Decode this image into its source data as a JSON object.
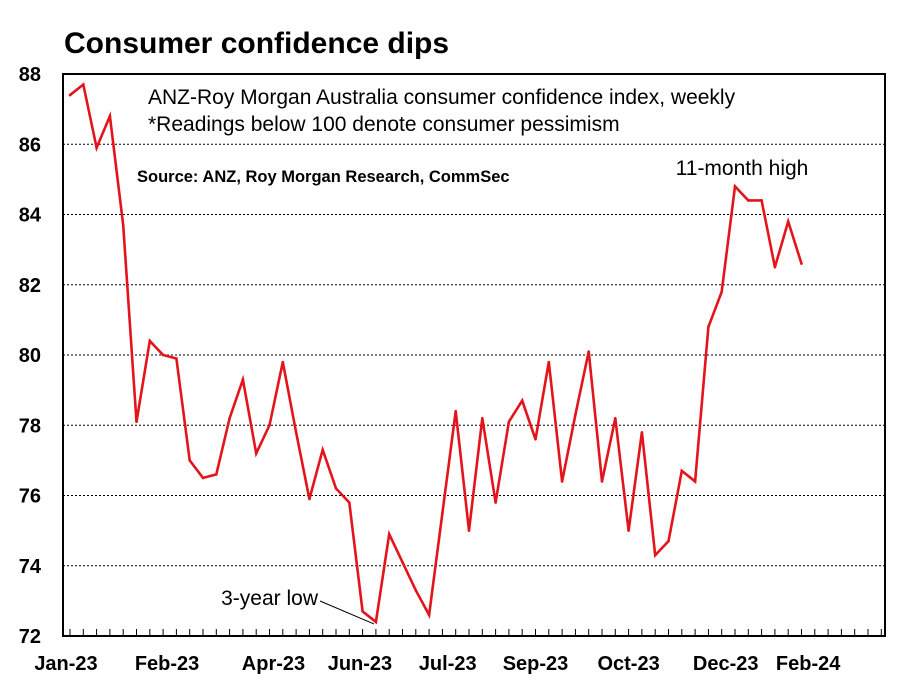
{
  "chart_data": {
    "type": "line",
    "title": "Consumer confidence dips",
    "subtitle_lines": [
      "ANZ-Roy Morgan Australia consumer confidence index, weekly",
      "*Readings below 100 denote consumer pessimism"
    ],
    "source": "Source: ANZ, Roy Morgan Research, CommSec",
    "xlabel": "",
    "ylabel": "",
    "ylim": [
      72,
      88
    ],
    "y_ticks": [
      72,
      74,
      76,
      78,
      80,
      82,
      84,
      86,
      88
    ],
    "x_tick_labels": [
      "Jan-23",
      "Feb-23",
      "Apr-23",
      "Jun-23",
      "Jul-23",
      "Sep-23",
      "Oct-23",
      "Dec-23",
      "Feb-24"
    ],
    "grid": "horizontal dotted",
    "series": [
      {
        "color": "#e3141b",
        "values": [
          87.4,
          87.7,
          85.9,
          86.8,
          83.7,
          78.1,
          80.4,
          80.0,
          79.9,
          77.0,
          76.5,
          76.6,
          78.2,
          79.3,
          77.2,
          78.0,
          79.8,
          77.8,
          75.9,
          77.3,
          76.2,
          75.8,
          72.7,
          72.4,
          74.9,
          74.1,
          73.3,
          72.6,
          75.5,
          78.4,
          75.0,
          78.2,
          75.8,
          78.1,
          78.7,
          77.6,
          79.8,
          76.4,
          78.3,
          80.1,
          76.4,
          78.2,
          75.0,
          77.8,
          74.3,
          74.7,
          76.7,
          76.4,
          80.8,
          81.8,
          84.8,
          84.4,
          84.4,
          82.5,
          83.8,
          82.6
        ]
      }
    ],
    "annotations": [
      {
        "text": "3-year low",
        "point_index": 23
      },
      {
        "text": "11-month high",
        "point_index": 50
      }
    ]
  }
}
